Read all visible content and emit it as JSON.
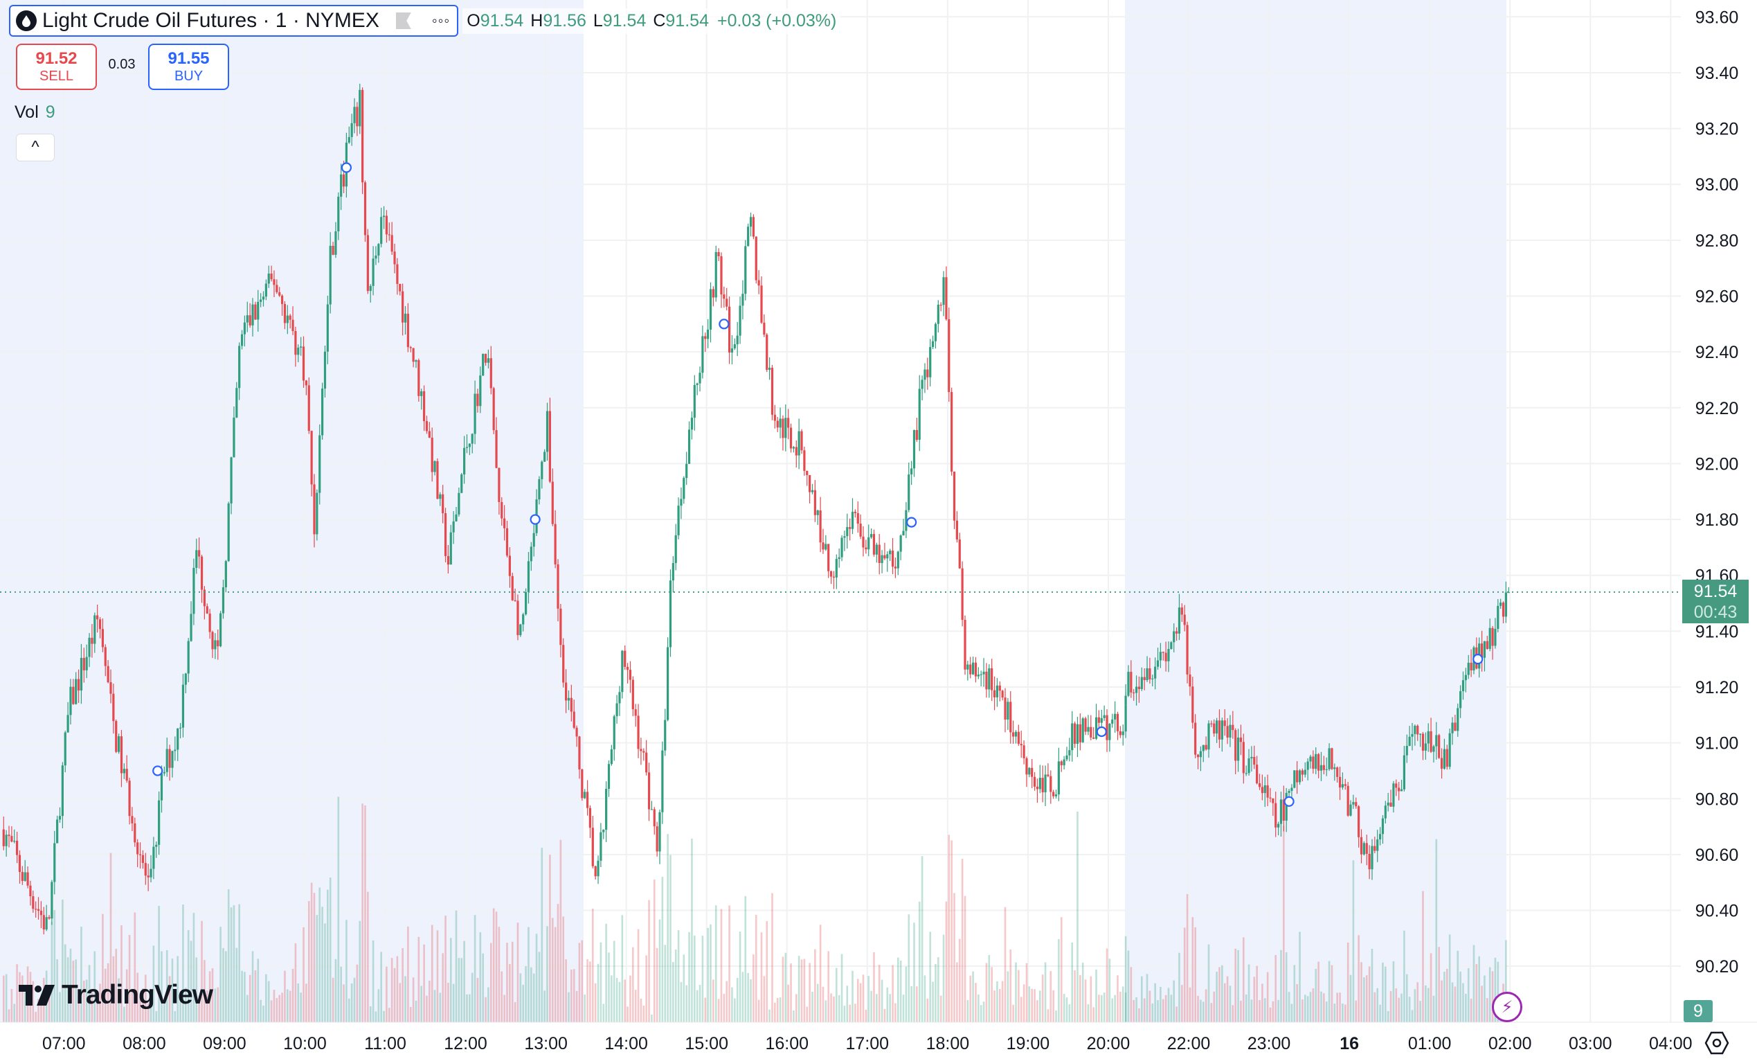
{
  "header": {
    "symbol_title": "Light Crude Oil Futures · 1 · NYMEX",
    "ohlc": {
      "o_label": "O",
      "o": "91.54",
      "h_label": "H",
      "h": "91.56",
      "l_label": "L",
      "l": "91.54",
      "c_label": "C",
      "c": "91.54",
      "change": "+0.03 (+0.03%)"
    },
    "icons": [
      "drop-icon",
      "flag-icon",
      "more-icon"
    ]
  },
  "trade": {
    "sell_price": "91.52",
    "sell_label": "SELL",
    "spread": "0.03",
    "buy_price": "91.55",
    "buy_label": "BUY"
  },
  "volume_legend": {
    "label": "Vol",
    "value": "9"
  },
  "collapse_label": "^",
  "logo": "TradingView",
  "current_price": {
    "value": "91.54",
    "countdown": "00:43"
  },
  "volume_badge": "9",
  "colors": {
    "up": "#2f9e7f",
    "down": "#e5484d",
    "session_shade": "#eef2fd",
    "marker": "#2962ff",
    "price_line": "#459a80"
  },
  "chart_data": {
    "type": "candlestick",
    "interval": "1",
    "y_ticks": [
      "93.60",
      "93.40",
      "93.20",
      "93.00",
      "92.80",
      "92.60",
      "92.40",
      "92.20",
      "92.00",
      "91.80",
      "91.60",
      "91.40",
      "91.20",
      "91.00",
      "90.80",
      "90.60",
      "90.40",
      "90.20"
    ],
    "ylim": [
      90.14,
      93.64
    ],
    "x_ticks": [
      "07:00",
      "08:00",
      "09:00",
      "10:00",
      "11:00",
      "12:00",
      "13:00",
      "14:00",
      "15:00",
      "16:00",
      "17:00",
      "18:00",
      "19:00",
      "20:00",
      "22:00",
      "23:00",
      "16",
      "01:00",
      "02:00",
      "03:00",
      "04:00"
    ],
    "price_path": [
      [
        "06:15",
        90.69
      ],
      [
        "06:29",
        90.53
      ],
      [
        "06:48",
        90.33
      ],
      [
        "06:58",
        90.85
      ],
      [
        "07:04",
        91.13
      ],
      [
        "07:26",
        91.45
      ],
      [
        "07:36",
        91.09
      ],
      [
        "07:46",
        90.85
      ],
      [
        "08:04",
        90.45
      ],
      [
        "08:14",
        90.89
      ],
      [
        "08:26",
        91.05
      ],
      [
        "08:39",
        91.69
      ],
      [
        "08:55",
        91.29
      ],
      [
        "09:12",
        92.46
      ],
      [
        "09:37",
        92.66
      ],
      [
        "10:00",
        92.34
      ],
      [
        "10:07",
        91.77
      ],
      [
        "10:19",
        92.74
      ],
      [
        "10:32",
        93.14
      ],
      [
        "10:41",
        93.28
      ],
      [
        "10:47",
        92.58
      ],
      [
        "10:57",
        92.9
      ],
      [
        "11:14",
        92.54
      ],
      [
        "11:30",
        92.17
      ],
      [
        "11:47",
        91.65
      ],
      [
        "12:00",
        92.05
      ],
      [
        "12:16",
        92.42
      ],
      [
        "12:25",
        91.85
      ],
      [
        "12:41",
        91.37
      ],
      [
        "13:01",
        92.13
      ],
      [
        "13:11",
        91.33
      ],
      [
        "13:27",
        90.85
      ],
      [
        "13:38",
        90.49
      ],
      [
        "13:57",
        91.33
      ],
      [
        "14:13",
        90.93
      ],
      [
        "14:24",
        90.61
      ],
      [
        "14:34",
        91.65
      ],
      [
        "14:47",
        92.13
      ],
      [
        "15:08",
        92.74
      ],
      [
        "15:19",
        92.38
      ],
      [
        "15:33",
        92.86
      ],
      [
        "15:50",
        92.17
      ],
      [
        "16:11",
        92.05
      ],
      [
        "16:32",
        91.61
      ],
      [
        "16:48",
        91.81
      ],
      [
        "17:09",
        91.65
      ],
      [
        "17:22",
        91.65
      ],
      [
        "17:39",
        92.21
      ],
      [
        "17:58",
        92.66
      ],
      [
        "18:04",
        91.89
      ],
      [
        "18:14",
        91.25
      ],
      [
        "18:29",
        91.25
      ],
      [
        "18:50",
        91.05
      ],
      [
        "19:06",
        90.85
      ],
      [
        "19:19",
        90.85
      ],
      [
        "19:36",
        91.05
      ],
      [
        "19:57",
        91.05
      ],
      [
        "21:13",
        91.21
      ],
      [
        "21:43",
        91.33
      ],
      [
        "21:55",
        91.45
      ],
      [
        "22:06",
        90.97
      ],
      [
        "22:24",
        91.05
      ],
      [
        "22:50",
        90.89
      ],
      [
        "23:05",
        90.71
      ],
      [
        "23:23",
        90.89
      ],
      [
        "23:48",
        90.93
      ],
      [
        "00:01",
        90.77
      ],
      [
        "00:15",
        90.57
      ],
      [
        "00:34",
        90.81
      ],
      [
        "00:51",
        91.05
      ],
      [
        "01:12",
        90.93
      ],
      [
        "01:29",
        91.29
      ],
      [
        "01:45",
        91.37
      ],
      [
        "01:59",
        91.54
      ]
    ],
    "markers": [
      [
        "08:10",
        90.9
      ],
      [
        "10:31",
        93.06
      ],
      [
        "12:52",
        91.8
      ],
      [
        "15:13",
        92.5
      ],
      [
        "17:33",
        91.79
      ],
      [
        "19:55",
        91.04
      ],
      [
        "23:15",
        90.79
      ],
      [
        "01:36",
        91.3
      ]
    ],
    "last": 91.54,
    "grid": true
  }
}
